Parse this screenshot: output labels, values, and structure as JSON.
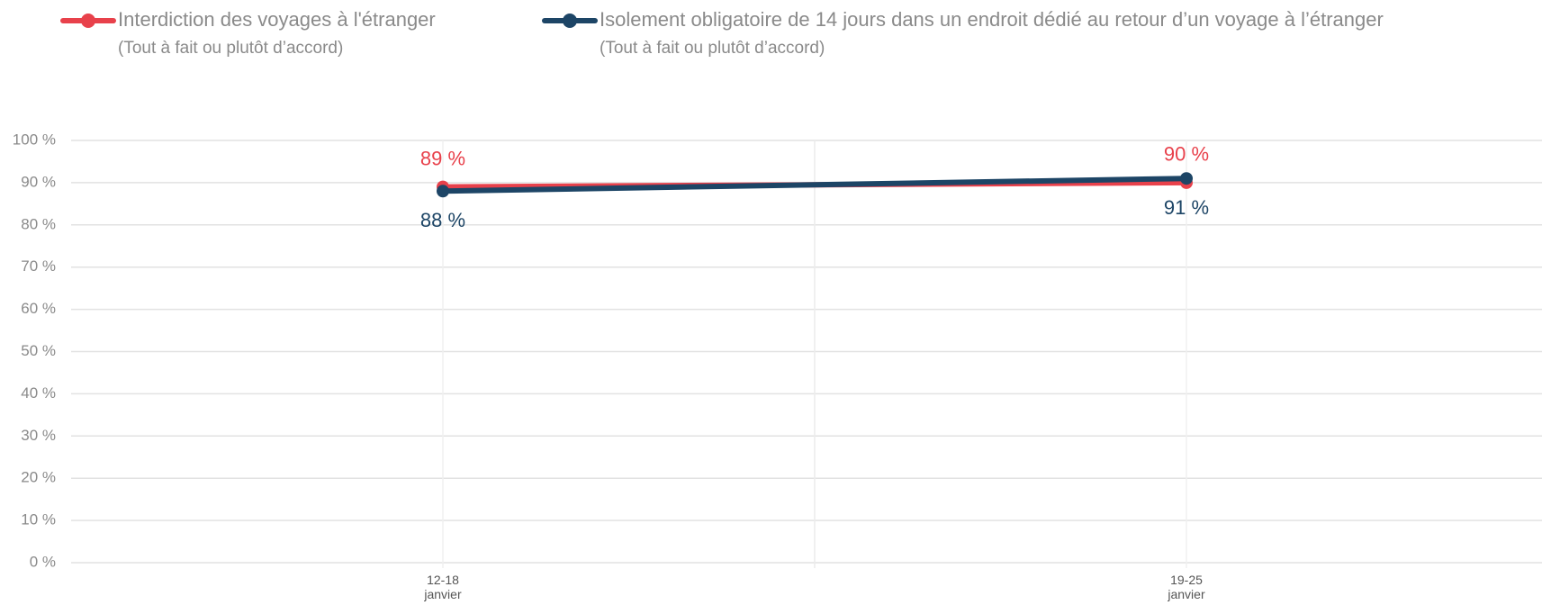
{
  "chart_data": {
    "type": "line",
    "categories": [
      "12-18 janvier",
      "19-25 janvier"
    ],
    "series": [
      {
        "name": "Interdiction des voyages à l'étranger",
        "note": "(Tout à fait ou plutôt d’accord)",
        "color": "#e8414b",
        "values": [
          89,
          90
        ],
        "value_labels": [
          "89 %",
          "90 %"
        ],
        "label_position": "above"
      },
      {
        "name": "Isolement obligatoire de 14 jours dans un endroit dédié au retour d’un voyage à l’étranger",
        "note": "(Tout à fait ou plutôt d’accord)",
        "color": "#1d4566",
        "values": [
          88,
          91
        ],
        "value_labels": [
          "88 %",
          "91 %"
        ],
        "label_position": "below"
      }
    ],
    "ylim": [
      0,
      100
    ],
    "yticks": [
      {
        "value": 0,
        "label": "0 %"
      },
      {
        "value": 10,
        "label": "10 %"
      },
      {
        "value": 20,
        "label": "20 %"
      },
      {
        "value": 30,
        "label": "30 %"
      },
      {
        "value": 40,
        "label": "40 %"
      },
      {
        "value": 50,
        "label": "50 %"
      },
      {
        "value": 60,
        "label": "60 %"
      },
      {
        "value": 70,
        "label": "70 %"
      },
      {
        "value": 80,
        "label": "80 %"
      },
      {
        "value": 90,
        "label": "90 %"
      },
      {
        "value": 100,
        "label": "100 %"
      }
    ],
    "grid": true
  }
}
